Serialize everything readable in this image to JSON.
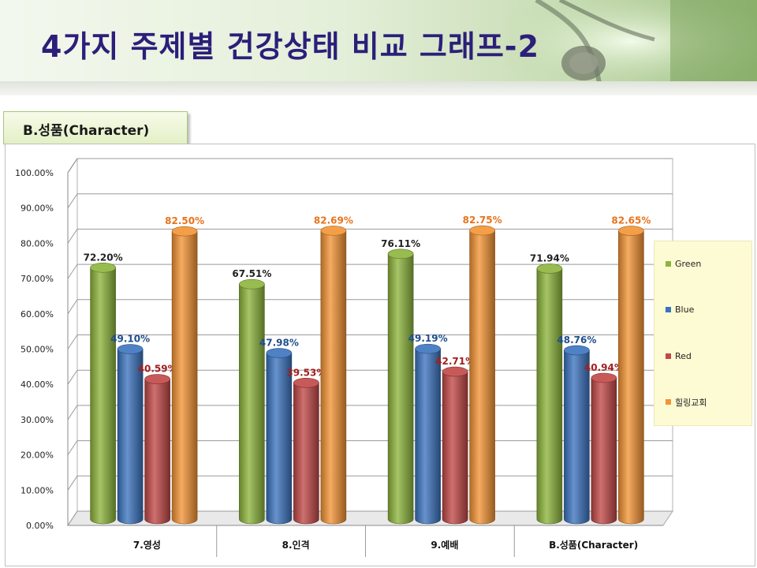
{
  "header": {
    "title": "4가지 주제별 건강상태 비교 그래프-2"
  },
  "section": {
    "label": "B.성품(Character)"
  },
  "colors": {
    "green": "#8db43b",
    "blue": "#3b73bf",
    "red": "#c14847",
    "orange": "#f39334"
  },
  "chart_data": {
    "type": "bar",
    "categories": [
      "7.영성",
      "8.인격",
      "9.예배",
      "B.성품(Character)"
    ],
    "series": [
      {
        "name": "Green",
        "values": [
          72.2,
          67.51,
          76.11,
          71.94
        ],
        "labels": [
          "72.20%",
          "67.51%",
          "76.11%",
          "71.94%"
        ],
        "label_color": "#222222"
      },
      {
        "name": "Blue",
        "values": [
          49.1,
          47.98,
          49.19,
          48.76
        ],
        "labels": [
          "49.10%",
          "47.98%",
          "49.19%",
          "48.76%"
        ],
        "label_color": "#1f4e8c"
      },
      {
        "name": "Red",
        "values": [
          40.59,
          39.53,
          42.71,
          40.94
        ],
        "labels": [
          "40.59%",
          "39.53%",
          "42.71%",
          "40.94%"
        ],
        "label_color": "#a11f1f"
      },
      {
        "name": "힐링교회",
        "values": [
          82.5,
          82.69,
          82.75,
          82.65
        ],
        "labels": [
          "82.50%",
          "82.69%",
          "82.75%",
          "82.65%"
        ],
        "label_color": "#e8731b"
      }
    ],
    "y_ticks": [
      "0.00%",
      "10.00%",
      "20.00%",
      "30.00%",
      "40.00%",
      "50.00%",
      "60.00%",
      "70.00%",
      "80.00%",
      "90.00%",
      "100.00%"
    ],
    "ylim": [
      0,
      100
    ],
    "grid": true,
    "legend": "right"
  }
}
